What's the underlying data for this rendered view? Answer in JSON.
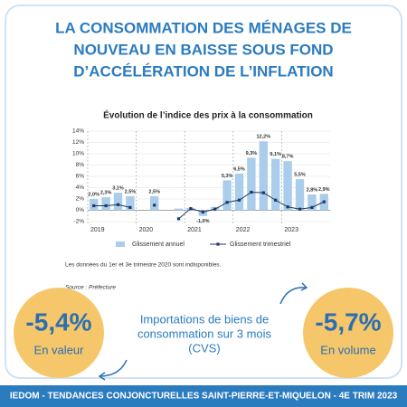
{
  "header": {
    "title": [
      "LA CONSOMMATION DES MÉNAGES DE",
      "NOUVEAU EN BAISSE SOUS FOND",
      "D’ACCÉLÉRATION DE L’INFLATION"
    ]
  },
  "chart_data": {
    "type": "bar-line",
    "title": "Évolution de l’indice des prix à la consommation",
    "categories": [
      null,
      null,
      null,
      null,
      null,
      null,
      null,
      null,
      null,
      null,
      null,
      null,
      null,
      null,
      null,
      null,
      null,
      null,
      null,
      null
    ],
    "year_labels": [
      "2019",
      "2020",
      "2021",
      "2022",
      "2023"
    ],
    "series": [
      {
        "name": "Glissement annuel",
        "kind": "bar",
        "color": "#a9cdea",
        "values": [
          2.0,
          2.3,
          3.1,
          2.5,
          null,
          2.5,
          null,
          0.3,
          0.4,
          -1.0,
          0.6,
          5.3,
          6.5,
          9.3,
          12.2,
          9.1,
          8.7,
          5.5,
          2.8,
          2.9
        ],
        "value_labels": [
          "2,0%",
          "2,3%",
          "3,1%",
          "2,5%",
          null,
          "2,5%",
          null,
          null,
          null,
          "-1,0%",
          null,
          "5,3%",
          "6,5%",
          "9,3%",
          "12,2%",
          "9,1%",
          "8,7%",
          "5,5%",
          "2,8%",
          "2,9%"
        ]
      },
      {
        "name": "Glissement trimestriel",
        "kind": "line",
        "color": "#1f3864",
        "values": [
          0.8,
          0.8,
          1.0,
          0.5,
          null,
          0.9,
          null,
          -1.5,
          0.3,
          -0.3,
          0.2,
          1.4,
          1.8,
          3.2,
          3.1,
          1.8,
          0.6,
          0.2,
          0.5,
          1.5
        ]
      }
    ],
    "ylim": [
      -2,
      14
    ],
    "yticks": [
      {
        "value": -2,
        "label": "-2%"
      },
      {
        "value": 0,
        "label": "0%"
      },
      {
        "value": 2,
        "label": "2%"
      },
      {
        "value": 4,
        "label": "4%"
      },
      {
        "value": 6,
        "label": "6%"
      },
      {
        "value": 8,
        "label": "8%"
      },
      {
        "value": 10,
        "label": "10%"
      },
      {
        "value": 12,
        "label": "12%"
      },
      {
        "value": 14,
        "label": "14%"
      }
    ],
    "grid": true,
    "note": "Les données du 1er et 3e trimestre 2020 sont indisponibles.",
    "source": "Source : Préfecture"
  },
  "imports": {
    "description": [
      "Importations de biens de",
      "consommation sur 3 mois",
      "(CVS)"
    ],
    "value_change": "-5,4%",
    "value_label": "En valeur",
    "volume_change": "-5,7%",
    "volume_label": "En volume"
  },
  "footer": "IEDOM - TENDANCES CONJONCTURELLES SAINT-PIERRE-ET-MIQUELON - 4E TRIM 2023"
}
